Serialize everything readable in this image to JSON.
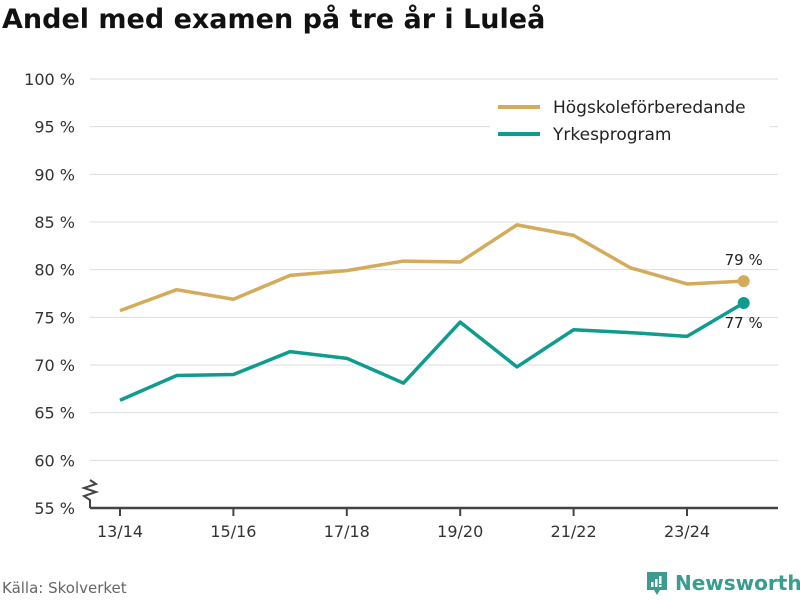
{
  "title": "Andel med examen på tre år i Luleå",
  "source": "Källa: Skolverket",
  "brand": "Newsworthy",
  "colors": {
    "series1": "#d4ab5a",
    "series2": "#0e9c8f",
    "grid": "#dddddd",
    "axis": "#444444",
    "brand": "#3a9c8f"
  },
  "chart_data": {
    "type": "line",
    "title": "Andel med examen på tre år i Luleå",
    "xlabel": "",
    "ylabel": "",
    "ylim": [
      55,
      100
    ],
    "yticks": [
      55,
      60,
      65,
      70,
      75,
      80,
      85,
      90,
      95,
      100
    ],
    "ytick_labels": [
      "55 %",
      "60 %",
      "65 %",
      "70 %",
      "75 %",
      "80 %",
      "85 %",
      "90 %",
      "95 %",
      "100 %"
    ],
    "x": [
      "13/14",
      "14/15",
      "15/16",
      "16/17",
      "17/18",
      "18/19",
      "19/20",
      "20/21",
      "21/22",
      "22/23",
      "23/24",
      "24/25"
    ],
    "xtick_labels": [
      "13/14",
      "15/16",
      "17/18",
      "19/20",
      "21/22",
      "23/24"
    ],
    "grid": true,
    "legend_position": "top-right",
    "series": [
      {
        "name": "Högskoleförberedande",
        "color": "#d4ab5a",
        "values": [
          75.7,
          77.9,
          76.9,
          79.4,
          79.9,
          80.9,
          80.8,
          84.7,
          83.6,
          80.2,
          78.5,
          78.8
        ],
        "end_label": "79 %"
      },
      {
        "name": "Yrkesprogram",
        "color": "#0e9c8f",
        "values": [
          66.3,
          68.9,
          69.0,
          71.4,
          70.7,
          68.1,
          74.5,
          69.8,
          73.7,
          73.4,
          73.0,
          76.5
        ],
        "end_label": "77 %"
      }
    ]
  }
}
